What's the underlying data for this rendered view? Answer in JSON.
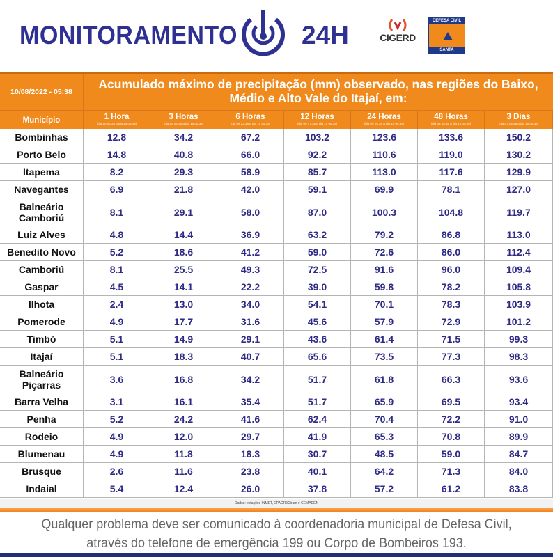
{
  "header": {
    "brand_left": "MONITORAMENTO",
    "brand_right": "24H",
    "logo1": "CIGERD",
    "logo2_top": "DEFESA CIVIL",
    "logo2_bottom": "SANTA CATARINA"
  },
  "table": {
    "date": "10/08/2022 - 05:38",
    "title": "Acumulado máximo de precipitação (mm) observado, nas regiões do Baixo, Médio e Alto Vale do Itajaí, em:",
    "municipio_label": "Município",
    "columns": [
      {
        "label": "1 Hora",
        "range": "(dia 10 04:38 a dia 10 05:38)"
      },
      {
        "label": "3 Horas",
        "range": "(dia 10 02:38 a dia 10 05:38)"
      },
      {
        "label": "6 Horas",
        "range": "(dia 09 23:38 a dia 10 05:38)"
      },
      {
        "label": "12 Horas",
        "range": "(dia 09 17:38 a dia 10 05:38)"
      },
      {
        "label": "24 Horas",
        "range": "(dia 09 05:38 a dia 10 05:38)"
      },
      {
        "label": "48 Horas",
        "range": "(dia 08 05:38 a dia 10 05:38)"
      },
      {
        "label": "3 Dias",
        "range": "(dia 07 05:38 a dia 10 05:38)"
      }
    ],
    "rows": [
      {
        "municipio": "Bombinhas",
        "values": [
          "12.8",
          "34.2",
          "67.2",
          "103.2",
          "123.6",
          "133.6",
          "150.2"
        ]
      },
      {
        "municipio": "Porto Belo",
        "values": [
          "14.8",
          "40.8",
          "66.0",
          "92.2",
          "110.6",
          "119.0",
          "130.2"
        ]
      },
      {
        "municipio": "Itapema",
        "values": [
          "8.2",
          "29.3",
          "58.9",
          "85.7",
          "113.0",
          "117.6",
          "129.9"
        ]
      },
      {
        "municipio": "Navegantes",
        "values": [
          "6.9",
          "21.8",
          "42.0",
          "59.1",
          "69.9",
          "78.1",
          "127.0"
        ]
      },
      {
        "municipio": "Balneário Camboriú",
        "values": [
          "8.1",
          "29.1",
          "58.0",
          "87.0",
          "100.3",
          "104.8",
          "119.7"
        ]
      },
      {
        "municipio": "Luiz Alves",
        "values": [
          "4.8",
          "14.4",
          "36.9",
          "63.2",
          "79.2",
          "86.8",
          "113.0"
        ]
      },
      {
        "municipio": "Benedito Novo",
        "values": [
          "5.2",
          "18.6",
          "41.2",
          "59.0",
          "72.6",
          "86.0",
          "112.4"
        ]
      },
      {
        "municipio": "Camboriú",
        "values": [
          "8.1",
          "25.5",
          "49.3",
          "72.5",
          "91.6",
          "96.0",
          "109.4"
        ]
      },
      {
        "municipio": "Gaspar",
        "values": [
          "4.5",
          "14.1",
          "22.2",
          "39.0",
          "59.8",
          "78.2",
          "105.8"
        ]
      },
      {
        "municipio": "Ilhota",
        "values": [
          "2.4",
          "13.0",
          "34.0",
          "54.1",
          "70.1",
          "78.3",
          "103.9"
        ]
      },
      {
        "municipio": "Pomerode",
        "values": [
          "4.9",
          "17.7",
          "31.6",
          "45.6",
          "57.9",
          "72.9",
          "101.2"
        ]
      },
      {
        "municipio": "Timbó",
        "values": [
          "5.1",
          "14.9",
          "29.1",
          "43.6",
          "61.4",
          "71.5",
          "99.3"
        ]
      },
      {
        "municipio": "Itajaí",
        "values": [
          "5.1",
          "18.3",
          "40.7",
          "65.6",
          "73.5",
          "77.3",
          "98.3"
        ]
      },
      {
        "municipio": "Balneário Piçarras",
        "values": [
          "3.6",
          "16.8",
          "34.2",
          "51.7",
          "61.8",
          "66.3",
          "93.6"
        ]
      },
      {
        "municipio": "Barra Velha",
        "values": [
          "3.1",
          "16.1",
          "35.4",
          "51.7",
          "65.9",
          "69.5",
          "93.4"
        ]
      },
      {
        "municipio": "Penha",
        "values": [
          "5.2",
          "24.2",
          "41.6",
          "62.4",
          "70.4",
          "72.2",
          "91.0"
        ]
      },
      {
        "municipio": "Rodeio",
        "values": [
          "4.9",
          "12.0",
          "29.7",
          "41.9",
          "65.3",
          "70.8",
          "89.9"
        ]
      },
      {
        "municipio": "Blumenau",
        "values": [
          "4.9",
          "11.8",
          "18.3",
          "30.7",
          "48.5",
          "59.0",
          "84.7"
        ]
      },
      {
        "municipio": "Brusque",
        "values": [
          "2.6",
          "11.6",
          "23.8",
          "40.1",
          "64.2",
          "71.3",
          "84.0"
        ]
      },
      {
        "municipio": "Indaial",
        "values": [
          "5.4",
          "12.4",
          "26.0",
          "37.8",
          "57.2",
          "61.2",
          "83.8"
        ]
      }
    ],
    "source": "Dados: estações INMET, EPAGRI/Ciram e CEMADEN"
  },
  "footer": {
    "line1": "Qualquer problema deve ser comunicado à coordenadoria municipal de Defesa Civil,",
    "line2": "através do telefone de emergência 199 ou Corpo de Bombeiros 193."
  },
  "colors": {
    "orange": "#f08a1c",
    "navy": "#2e3192",
    "value_text": "#2e2a85"
  }
}
